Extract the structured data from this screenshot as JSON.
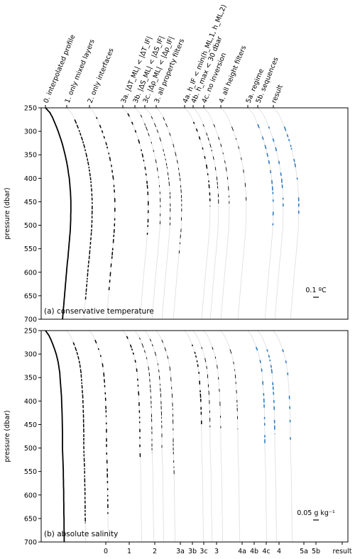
{
  "chart_data": {
    "type": "line",
    "step_labels": [
      "0. interpolated profile",
      "1. only mixed layers",
      "2. only interfaces",
      "3a. |ΔT_ML| < |ΔT_IF|",
      "3b. |ΔS_ML| < |ΔS_IF|",
      "3c. |Δρ_ML| < |Δρ_IF|",
      "3. all property filters",
      "4a. h_IF < min(h_ML,1, h_ML,2)",
      "4b. h_max < 30 dbar",
      "4c. no inversion",
      "4. all height filters",
      "5a. regime",
      "5b. sequences",
      "result"
    ],
    "step_ticks": [
      "0",
      "1",
      "2",
      "3a",
      "3b",
      "3c",
      "3",
      "4a",
      "4b",
      "4c",
      "4",
      "5a",
      "5b",
      "result"
    ],
    "ylabel": "pressure (dbar)",
    "ylim": [
      700,
      250
    ],
    "yticks": [
      250,
      300,
      350,
      400,
      450,
      500,
      550,
      600,
      650,
      700
    ],
    "panels": [
      {
        "label": "(a)  conservative temperature",
        "scale_bar": "0.1 ºC",
        "profile": {
          "pressure": [
            250,
            260,
            270,
            280,
            290,
            300,
            310,
            320,
            330,
            340,
            350,
            360,
            370,
            380,
            390,
            400,
            410,
            420,
            430,
            440,
            450,
            460,
            470,
            480,
            490,
            500,
            510,
            520,
            530,
            540,
            550,
            560,
            570,
            580,
            590,
            600,
            610,
            620,
            630,
            640,
            650,
            660,
            670,
            680,
            690,
            700
          ],
          "offset": [
            0,
            0.22,
            0.35,
            0.45,
            0.55,
            0.64,
            0.72,
            0.8,
            0.87,
            0.93,
            0.99,
            1.04,
            1.09,
            1.13,
            1.16,
            1.2,
            1.22,
            1.24,
            1.26,
            1.27,
            1.28,
            1.28,
            1.28,
            1.27,
            1.27,
            1.26,
            1.25,
            1.23,
            1.21,
            1.19,
            1.17,
            1.15,
            1.13,
            1.1,
            1.08,
            1.06,
            1.04,
            1.02,
            1.0,
            0.98,
            0.96,
            0.94,
            0.92,
            0.9,
            0.88,
            0.86
          ]
        }
      },
      {
        "label": "(b)  absolute salinity",
        "scale_bar": "0.05 g kg⁻¹",
        "profile": {
          "pressure": [
            250,
            260,
            270,
            280,
            290,
            300,
            310,
            320,
            330,
            340,
            350,
            360,
            370,
            380,
            390,
            400,
            410,
            420,
            430,
            440,
            450,
            460,
            470,
            480,
            490,
            500,
            510,
            520,
            530,
            540,
            550,
            560,
            570,
            580,
            590,
            600,
            610,
            620,
            630,
            640,
            650,
            660,
            670,
            680,
            690,
            700
          ],
          "offset": [
            0,
            0.2,
            0.33,
            0.44,
            0.54,
            0.63,
            0.7,
            0.76,
            0.8,
            0.84,
            0.86,
            0.88,
            0.9,
            0.92,
            0.94,
            0.95,
            0.96,
            0.97,
            0.98,
            0.985,
            0.99,
            0.995,
            1.0,
            1.0,
            1.0,
            1.0,
            1.01,
            1.02,
            1.03,
            1.04,
            1.05,
            1.05,
            1.06,
            1.06,
            1.07,
            1.07,
            1.07,
            1.08,
            1.08,
            1.08,
            1.09,
            1.09,
            1.09,
            1.1,
            1.1,
            1.1
          ]
        }
      }
    ]
  }
}
